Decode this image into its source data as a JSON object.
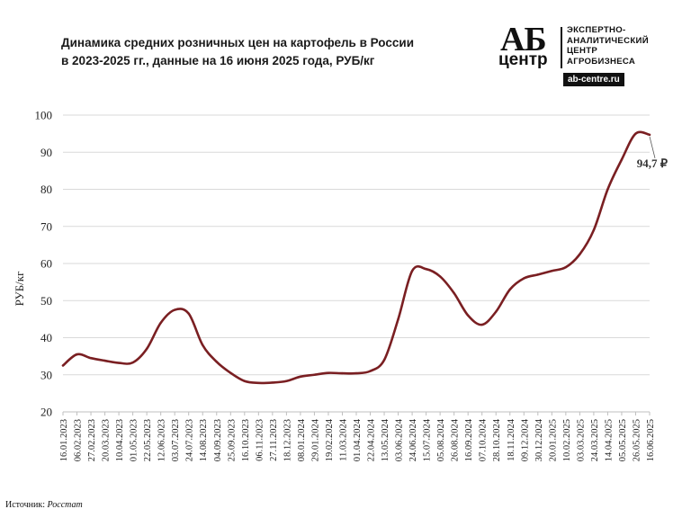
{
  "title": {
    "line1": "Динамика средних розничных цен на картофель в России",
    "line2": "в 2023-2025 гг., данные на 16 июня 2025 года, РУБ/кг"
  },
  "logo": {
    "mark_top": "АБ",
    "mark_bottom": "центр",
    "line1": "ЭКСПЕРТНО-",
    "line2": "АНАЛИТИЧЕСКИЙ",
    "line3": "ЦЕНТР",
    "line4": "АГРОБИЗНЕСА",
    "url": "ab-centre.ru"
  },
  "source": {
    "label": "Источник: ",
    "name": "Росстат"
  },
  "colors": {
    "line": "#7a1f22",
    "grid": "#d9d9d9",
    "axis": "#bfbfbf"
  },
  "chart_data": {
    "type": "line",
    "title": "Динамика средних розничных цен на картофель в России в 2023-2025 гг., данные на 16 июня 2025 года, РУБ/кг",
    "xlabel": "",
    "ylabel": "РУБ/кг",
    "ylim": [
      20,
      100
    ],
    "yticks": [
      20,
      30,
      40,
      50,
      60,
      70,
      80,
      90,
      100
    ],
    "grid": true,
    "legend": "none",
    "categories": [
      "16.01.2023",
      "06.02.2023",
      "27.02.2023",
      "20.03.2023",
      "10.04.2023",
      "01.05.2023",
      "22.05.2023",
      "12.06.2023",
      "03.07.2023",
      "24.07.2023",
      "14.08.2023",
      "04.09.2023",
      "25.09.2023",
      "16.10.2023",
      "06.11.2023",
      "27.11.2023",
      "18.12.2023",
      "08.01.2024",
      "29.01.2024",
      "19.02.2024",
      "11.03.2024",
      "01.04.2024",
      "22.04.2024",
      "13.05.2024",
      "03.06.2024",
      "24.06.2024",
      "15.07.2024",
      "05.08.2024",
      "26.08.2024",
      "16.09.2024",
      "07.10.2024",
      "28.10.2024",
      "18.11.2024",
      "09.12.2024",
      "30.12.2024",
      "20.01.2025",
      "10.02.2025",
      "03.03.2025",
      "24.03.2025",
      "14.04.2025",
      "05.05.2025",
      "26.05.2025",
      "16.06.2025"
    ],
    "series": [
      {
        "values": [
          32.5,
          35.5,
          34.5,
          33.8,
          33.2,
          33.3,
          37.0,
          44.0,
          47.5,
          46.5,
          38.0,
          33.5,
          30.5,
          28.3,
          27.8,
          27.9,
          28.3,
          29.5,
          30.0,
          30.5,
          30.4,
          30.4,
          31.0,
          34.0,
          45.0,
          58.0,
          58.5,
          56.5,
          52.0,
          46.0,
          43.5,
          47.0,
          53.0,
          56.0,
          57.0,
          58.0,
          59.0,
          62.5,
          69.0,
          80.0,
          88.0,
          95.0,
          94.7
        ]
      }
    ],
    "annotations": [
      {
        "category": "16.06.2025",
        "text": "94,7 ₽"
      }
    ]
  }
}
